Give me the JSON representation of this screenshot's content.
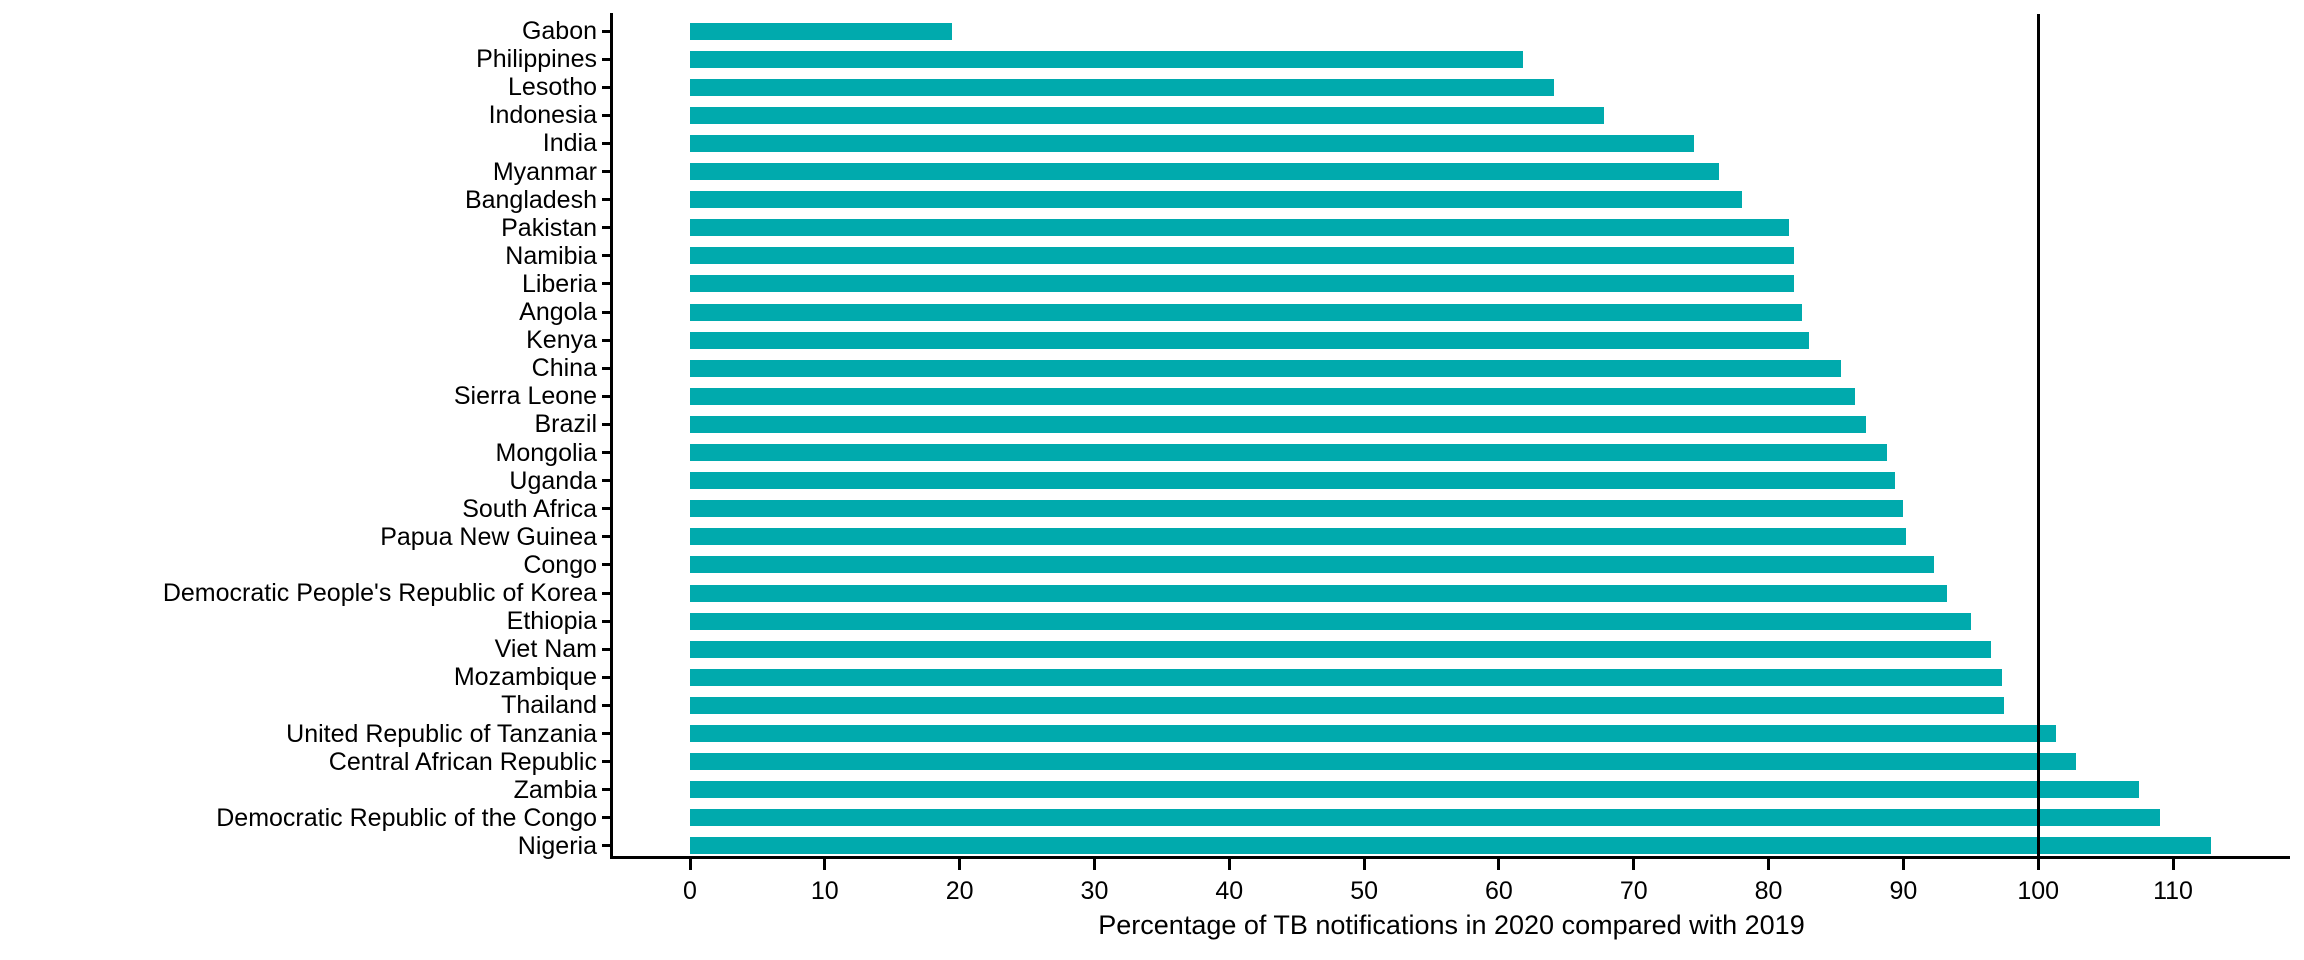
{
  "figure": {
    "background_color": "#ffffff",
    "axis_color": "#000000"
  },
  "chart_data": {
    "type": "bar",
    "orientation": "horizontal",
    "title": "",
    "xlabel": "Percentage of TB notifications in 2020 compared with 2019",
    "ylabel": "",
    "grid": "off",
    "legend": "none",
    "xlim": [
      -5.6,
      118.4
    ],
    "x_ticks": [
      0,
      10,
      20,
      30,
      40,
      50,
      60,
      70,
      80,
      90,
      100,
      110
    ],
    "reference_line_x": 100,
    "bar_color": "#00AAAD",
    "categories": [
      "Gabon",
      "Philippines",
      "Lesotho",
      "Indonesia",
      "India",
      "Myanmar",
      "Bangladesh",
      "Pakistan",
      "Namibia",
      "Liberia",
      "Angola",
      "Kenya",
      "China",
      "Sierra Leone",
      "Brazil",
      "Mongolia",
      "Uganda",
      "South Africa",
      "Papua New Guinea",
      "Congo",
      "Democratic People's Republic of Korea",
      "Ethiopia",
      "Viet Nam",
      "Mozambique",
      "Thailand",
      "United Republic of Tanzania",
      "Central African Republic",
      "Zambia",
      "Democratic Republic of the Congo",
      "Nigeria"
    ],
    "values": [
      19.4,
      61.8,
      64.1,
      67.8,
      74.5,
      76.3,
      78.0,
      81.5,
      81.9,
      81.9,
      82.5,
      83.0,
      85.4,
      86.4,
      87.2,
      88.8,
      89.4,
      90.0,
      90.2,
      92.3,
      93.2,
      95.0,
      96.5,
      97.3,
      97.5,
      101.3,
      102.8,
      107.5,
      109.0,
      112.8
    ]
  }
}
